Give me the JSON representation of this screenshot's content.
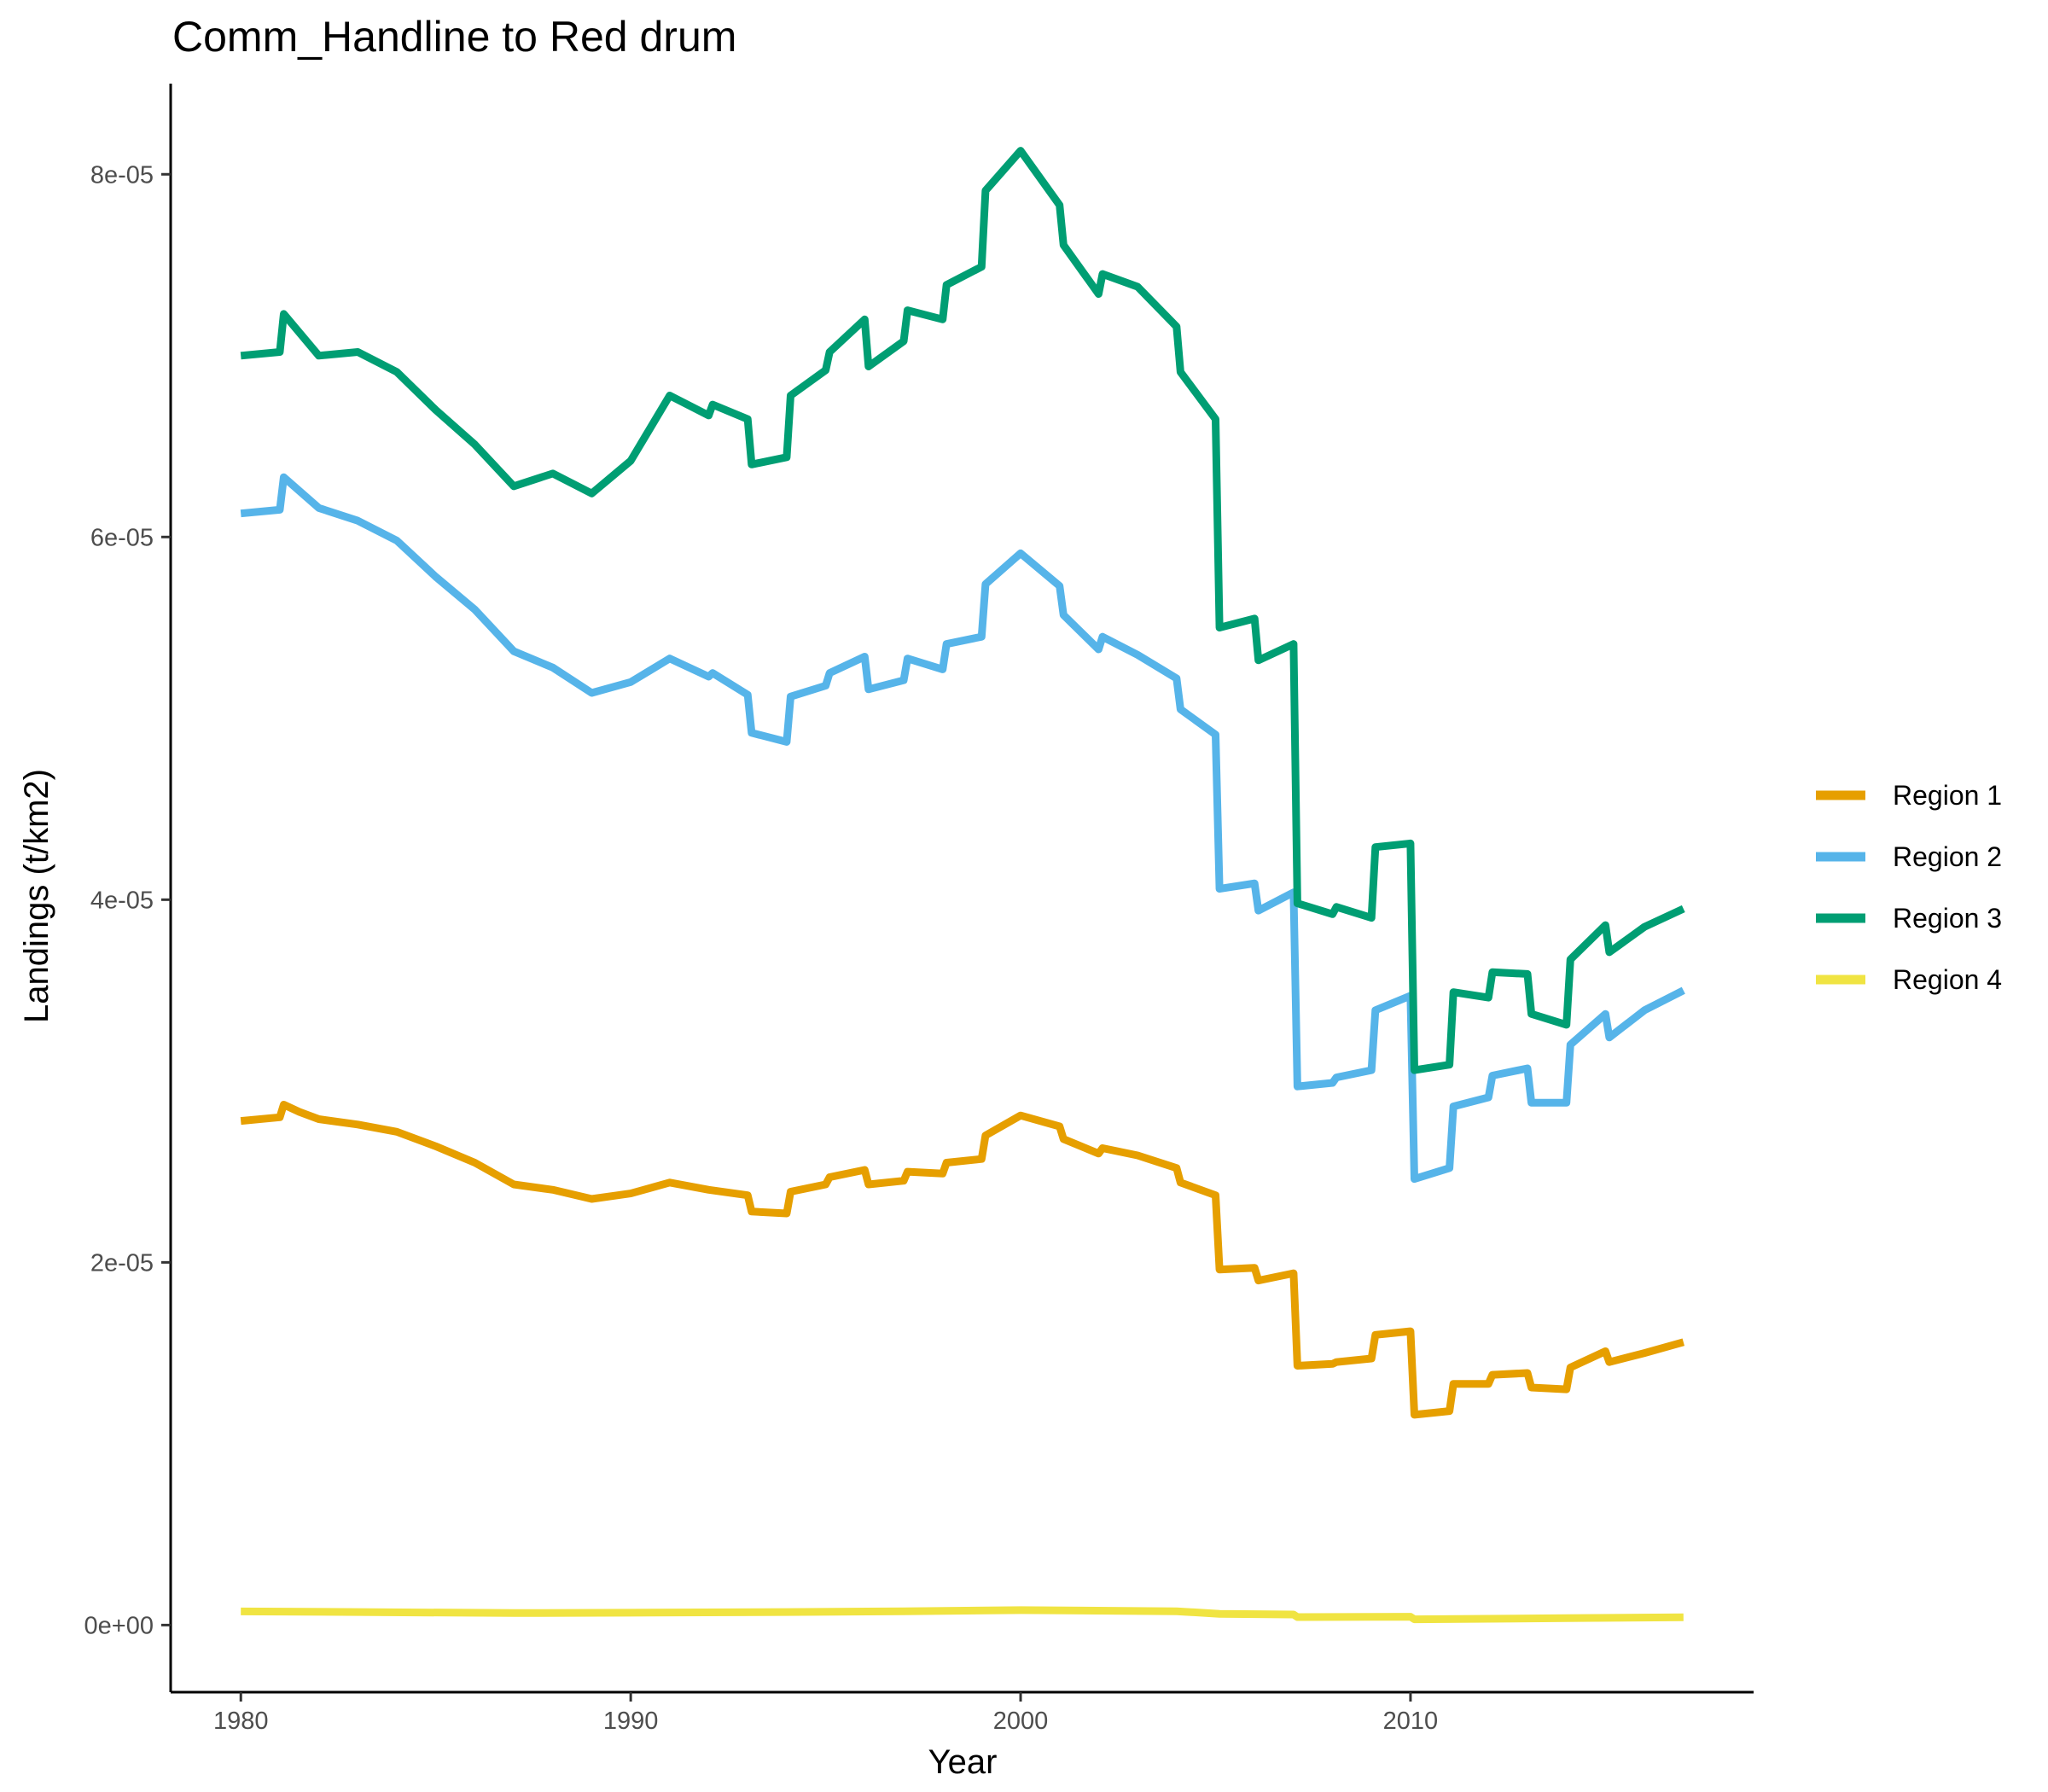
{
  "chart_data": {
    "type": "line",
    "title": "Comm_Handline to Red drum",
    "xlabel": "Year",
    "ylabel": "Landings (t/km2)",
    "xlim": [
      1978.2,
      2018.8
    ],
    "ylim": [
      -3.7e-06,
      8.5e-05
    ],
    "x_ticks": [
      1980,
      1990,
      2000,
      2010
    ],
    "x_tick_labels": [
      "1980",
      "1990",
      "2000",
      "2010"
    ],
    "y_ticks": [
      0,
      2e-05,
      4e-05,
      6e-05,
      8e-05
    ],
    "y_tick_labels": [
      "0e+00",
      "2e-05",
      "4e-05",
      "6e-05",
      "8e-05"
    ],
    "grid": false,
    "legend_position": "right",
    "series": [
      {
        "name": "Region 1",
        "color": "#E69F00",
        "points": [
          [
            1980,
            2.78e-05
          ],
          [
            1981,
            2.8e-05
          ],
          [
            1981.1,
            2.87e-05
          ],
          [
            1981.5,
            2.83e-05
          ],
          [
            1982,
            2.79e-05
          ],
          [
            1983,
            2.76e-05
          ],
          [
            1984,
            2.72e-05
          ],
          [
            1985,
            2.64e-05
          ],
          [
            1986,
            2.55e-05
          ],
          [
            1987,
            2.43e-05
          ],
          [
            1988,
            2.4e-05
          ],
          [
            1989,
            2.35e-05
          ],
          [
            1990,
            2.38e-05
          ],
          [
            1991,
            2.44e-05
          ],
          [
            1992,
            2.4e-05
          ],
          [
            1993,
            2.37e-05
          ],
          [
            1993.1,
            2.28e-05
          ],
          [
            1994,
            2.27e-05
          ],
          [
            1994.1,
            2.39e-05
          ],
          [
            1995,
            2.43e-05
          ],
          [
            1995.1,
            2.47e-05
          ],
          [
            1996,
            2.51e-05
          ],
          [
            1996.1,
            2.43e-05
          ],
          [
            1997,
            2.45e-05
          ],
          [
            1997.1,
            2.5e-05
          ],
          [
            1998,
            2.49e-05
          ],
          [
            1998.1,
            2.55e-05
          ],
          [
            1999,
            2.57e-05
          ],
          [
            1999.1,
            2.7e-05
          ],
          [
            2000,
            2.81e-05
          ],
          [
            2001,
            2.75e-05
          ],
          [
            2001.1,
            2.68e-05
          ],
          [
            2002,
            2.6e-05
          ],
          [
            2002.1,
            2.63e-05
          ],
          [
            2003,
            2.59e-05
          ],
          [
            2004,
            2.52e-05
          ],
          [
            2004.1,
            2.44e-05
          ],
          [
            2005,
            2.37e-05
          ],
          [
            2005.1,
            1.96e-05
          ],
          [
            2006,
            1.97e-05
          ],
          [
            2006.1,
            1.9e-05
          ],
          [
            2007,
            1.94e-05
          ],
          [
            2007.1,
            1.43e-05
          ],
          [
            2008,
            1.44e-05
          ],
          [
            2008.1,
            1.45e-05
          ],
          [
            2009,
            1.47e-05
          ],
          [
            2009.1,
            1.6e-05
          ],
          [
            2010,
            1.62e-05
          ],
          [
            2010.1,
            1.16e-05
          ],
          [
            2011,
            1.18e-05
          ],
          [
            2011.1,
            1.33e-05
          ],
          [
            2012,
            1.33e-05
          ],
          [
            2012.1,
            1.38e-05
          ],
          [
            2013,
            1.39e-05
          ],
          [
            2013.1,
            1.31e-05
          ],
          [
            2014,
            1.3e-05
          ],
          [
            2014.1,
            1.42e-05
          ],
          [
            2015,
            1.51e-05
          ],
          [
            2015.1,
            1.45e-05
          ],
          [
            2016,
            1.5e-05
          ],
          [
            2017,
            1.56e-05
          ]
        ]
      },
      {
        "name": "Region 2",
        "color": "#56B4E9",
        "points": [
          [
            1980,
            6.13e-05
          ],
          [
            1981,
            6.15e-05
          ],
          [
            1981.1,
            6.33e-05
          ],
          [
            1982,
            6.16e-05
          ],
          [
            1983,
            6.09e-05
          ],
          [
            1984,
            5.98e-05
          ],
          [
            1985,
            5.78e-05
          ],
          [
            1986,
            5.6e-05
          ],
          [
            1987,
            5.37e-05
          ],
          [
            1988,
            5.28e-05
          ],
          [
            1989,
            5.14e-05
          ],
          [
            1990,
            5.2e-05
          ],
          [
            1991,
            5.33e-05
          ],
          [
            1992,
            5.23e-05
          ],
          [
            1992.1,
            5.25e-05
          ],
          [
            1993,
            5.13e-05
          ],
          [
            1993.1,
            4.92e-05
          ],
          [
            1994,
            4.87e-05
          ],
          [
            1994.1,
            5.12e-05
          ],
          [
            1995,
            5.18e-05
          ],
          [
            1995.1,
            5.25e-05
          ],
          [
            1996,
            5.34e-05
          ],
          [
            1996.1,
            5.16e-05
          ],
          [
            1997,
            5.21e-05
          ],
          [
            1997.1,
            5.33e-05
          ],
          [
            1998,
            5.27e-05
          ],
          [
            1998.1,
            5.41e-05
          ],
          [
            1999,
            5.45e-05
          ],
          [
            1999.1,
            5.74e-05
          ],
          [
            2000,
            5.91e-05
          ],
          [
            2001,
            5.73e-05
          ],
          [
            2001.1,
            5.57e-05
          ],
          [
            2002,
            5.38e-05
          ],
          [
            2002.1,
            5.45e-05
          ],
          [
            2003,
            5.35e-05
          ],
          [
            2004,
            5.22e-05
          ],
          [
            2004.1,
            5.05e-05
          ],
          [
            2005,
            4.91e-05
          ],
          [
            2005.1,
            4.06e-05
          ],
          [
            2006,
            4.09e-05
          ],
          [
            2006.1,
            3.94e-05
          ],
          [
            2007,
            4.04e-05
          ],
          [
            2007.1,
            2.97e-05
          ],
          [
            2008,
            2.99e-05
          ],
          [
            2008.1,
            3.02e-05
          ],
          [
            2009,
            3.06e-05
          ],
          [
            2009.1,
            3.39e-05
          ],
          [
            2010,
            3.47e-05
          ],
          [
            2010.1,
            2.46e-05
          ],
          [
            2011,
            2.52e-05
          ],
          [
            2011.1,
            2.86e-05
          ],
          [
            2012,
            2.91e-05
          ],
          [
            2012.1,
            3.03e-05
          ],
          [
            2013,
            3.07e-05
          ],
          [
            2013.1,
            2.88e-05
          ],
          [
            2014,
            2.88e-05
          ],
          [
            2014.1,
            3.2e-05
          ],
          [
            2015,
            3.37e-05
          ],
          [
            2015.1,
            3.24e-05
          ],
          [
            2016,
            3.39e-05
          ],
          [
            2017,
            3.5e-05
          ]
        ]
      },
      {
        "name": "Region 3",
        "color": "#009E73",
        "points": [
          [
            1980,
            7e-05
          ],
          [
            1981,
            7.02e-05
          ],
          [
            1981.1,
            7.23e-05
          ],
          [
            1982,
            7e-05
          ],
          [
            1983,
            7.02e-05
          ],
          [
            1984,
            6.91e-05
          ],
          [
            1985,
            6.7e-05
          ],
          [
            1986,
            6.51e-05
          ],
          [
            1987,
            6.28e-05
          ],
          [
            1988,
            6.35e-05
          ],
          [
            1989,
            6.24e-05
          ],
          [
            1990,
            6.42e-05
          ],
          [
            1991,
            6.78e-05
          ],
          [
            1992,
            6.67e-05
          ],
          [
            1992.1,
            6.73e-05
          ],
          [
            1993,
            6.65e-05
          ],
          [
            1993.1,
            6.4e-05
          ],
          [
            1994,
            6.44e-05
          ],
          [
            1994.1,
            6.78e-05
          ],
          [
            1995,
            6.92e-05
          ],
          [
            1995.1,
            7.02e-05
          ],
          [
            1996,
            7.2e-05
          ],
          [
            1996.1,
            6.94e-05
          ],
          [
            1997,
            7.08e-05
          ],
          [
            1997.1,
            7.25e-05
          ],
          [
            1998,
            7.2e-05
          ],
          [
            1998.1,
            7.39e-05
          ],
          [
            1999,
            7.49e-05
          ],
          [
            1999.1,
            7.91e-05
          ],
          [
            2000,
            8.13e-05
          ],
          [
            2001,
            7.83e-05
          ],
          [
            2001.1,
            7.61e-05
          ],
          [
            2002,
            7.34e-05
          ],
          [
            2002.1,
            7.45e-05
          ],
          [
            2003,
            7.38e-05
          ],
          [
            2004,
            7.16e-05
          ],
          [
            2004.1,
            6.91e-05
          ],
          [
            2005,
            6.65e-05
          ],
          [
            2005.1,
            5.5e-05
          ],
          [
            2006,
            5.55e-05
          ],
          [
            2006.1,
            5.32e-05
          ],
          [
            2007,
            5.41e-05
          ],
          [
            2007.1,
            3.98e-05
          ],
          [
            2008,
            3.92e-05
          ],
          [
            2008.1,
            3.96e-05
          ],
          [
            2009,
            3.9e-05
          ],
          [
            2009.1,
            4.29e-05
          ],
          [
            2010,
            4.31e-05
          ],
          [
            2010.1,
            3.06e-05
          ],
          [
            2011,
            3.09e-05
          ],
          [
            2011.1,
            3.49e-05
          ],
          [
            2012,
            3.46e-05
          ],
          [
            2012.1,
            3.6e-05
          ],
          [
            2013,
            3.59e-05
          ],
          [
            2013.1,
            3.37e-05
          ],
          [
            2014,
            3.31e-05
          ],
          [
            2014.1,
            3.67e-05
          ],
          [
            2015,
            3.86e-05
          ],
          [
            2015.1,
            3.71e-05
          ],
          [
            2016,
            3.85e-05
          ],
          [
            2017,
            3.95e-05
          ]
        ]
      },
      {
        "name": "Region 4",
        "color": "#F0E442",
        "points": [
          [
            1980,
            7.5e-07
          ],
          [
            1983,
            7.2e-07
          ],
          [
            1987,
            6.6e-07
          ],
          [
            1990,
            6.8e-07
          ],
          [
            1994,
            7.2e-07
          ],
          [
            1997,
            7.6e-07
          ],
          [
            2000,
            8.2e-07
          ],
          [
            2004,
            7.6e-07
          ],
          [
            2005.1,
            6.2e-07
          ],
          [
            2007,
            5.8e-07
          ],
          [
            2007.1,
            4.4e-07
          ],
          [
            2010,
            4.6e-07
          ],
          [
            2010.1,
            3.2e-07
          ],
          [
            2014,
            3.8e-07
          ],
          [
            2017,
            4.3e-07
          ]
        ]
      }
    ]
  }
}
